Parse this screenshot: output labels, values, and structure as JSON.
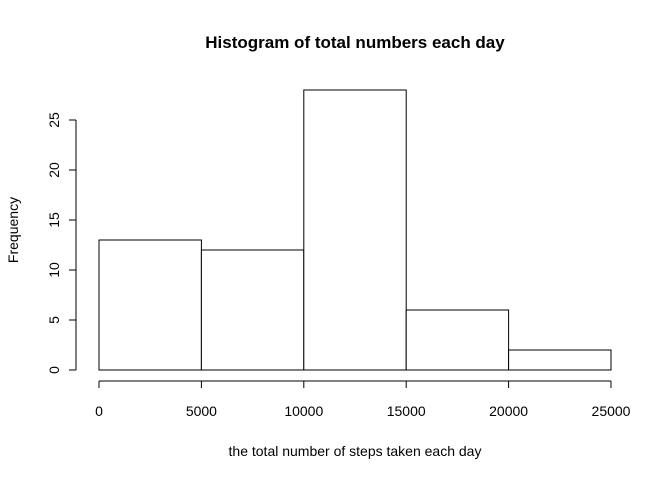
{
  "chart_data": {
    "type": "bar",
    "title": "Histogram of total numbers each day",
    "xlabel": "the total number of steps taken each day",
    "ylabel": "Frequency",
    "bins": [
      {
        "start": 0,
        "end": 5000,
        "value": 13
      },
      {
        "start": 5000,
        "end": 10000,
        "value": 12
      },
      {
        "start": 10000,
        "end": 15000,
        "value": 28
      },
      {
        "start": 15000,
        "end": 20000,
        "value": 6
      },
      {
        "start": 20000,
        "end": 25000,
        "value": 2
      }
    ],
    "xlim": [
      0,
      25000
    ],
    "ylim": [
      0,
      28
    ],
    "x_ticks": [
      "0",
      "5000",
      "10000",
      "15000",
      "20000",
      "25000"
    ],
    "y_ticks": [
      "0",
      "5",
      "10",
      "15",
      "20",
      "25"
    ],
    "grid": false
  }
}
